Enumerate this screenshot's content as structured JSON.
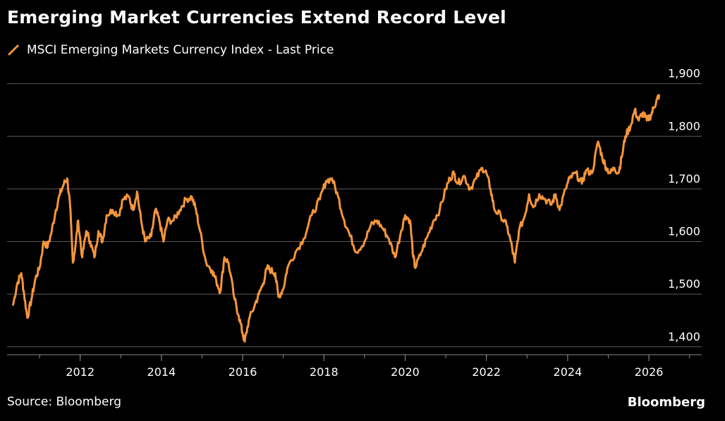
{
  "chart_data": {
    "type": "line",
    "title": "Emerging Market Currencies Extend Record Level",
    "source": "Source: Bloomberg",
    "brand": "Bloomberg",
    "xlabel": "",
    "ylabel": "",
    "xlim": [
      2010.2,
      2027.3
    ],
    "ylim": [
      1385,
      1925
    ],
    "y_ticks": [
      {
        "value": 1400,
        "label": "1,400"
      },
      {
        "value": 1500,
        "label": "1,500"
      },
      {
        "value": 1600,
        "label": "1,600"
      },
      {
        "value": 1700,
        "label": "1,700"
      },
      {
        "value": 1800,
        "label": "1,800"
      },
      {
        "value": 1900,
        "label": "1,900"
      }
    ],
    "x_ticks": [
      {
        "value": 2012,
        "label": "2012"
      },
      {
        "value": 2014,
        "label": "2014"
      },
      {
        "value": 2016,
        "label": "2016"
      },
      {
        "value": 2018,
        "label": "2018"
      },
      {
        "value": 2020,
        "label": "2020"
      },
      {
        "value": 2022,
        "label": "2022"
      },
      {
        "value": 2024,
        "label": "2024"
      },
      {
        "value": 2026,
        "label": "2026"
      }
    ],
    "grid": true,
    "legend_position": "top-left",
    "colors": {
      "line": "#f5953a",
      "grid": "#5a5a5a",
      "axis": "#8a8a8a",
      "background": "#000000"
    },
    "series": [
      {
        "name": "MSCI Emerging Markets Currency Index - Last Price",
        "points": [
          [
            2010.35,
            1480
          ],
          [
            2010.45,
            1520
          ],
          [
            2010.55,
            1540
          ],
          [
            2010.62,
            1500
          ],
          [
            2010.7,
            1455
          ],
          [
            2010.8,
            1490
          ],
          [
            2010.9,
            1530
          ],
          [
            2011.0,
            1550
          ],
          [
            2011.1,
            1600
          ],
          [
            2011.2,
            1590
          ],
          [
            2011.3,
            1620
          ],
          [
            2011.4,
            1660
          ],
          [
            2011.5,
            1690
          ],
          [
            2011.6,
            1710
          ],
          [
            2011.68,
            1720
          ],
          [
            2011.75,
            1670
          ],
          [
            2011.82,
            1560
          ],
          [
            2011.88,
            1590
          ],
          [
            2011.95,
            1640
          ],
          [
            2012.05,
            1570
          ],
          [
            2012.15,
            1620
          ],
          [
            2012.25,
            1600
          ],
          [
            2012.35,
            1570
          ],
          [
            2012.45,
            1620
          ],
          [
            2012.55,
            1600
          ],
          [
            2012.65,
            1650
          ],
          [
            2012.8,
            1660
          ],
          [
            2012.95,
            1650
          ],
          [
            2013.05,
            1680
          ],
          [
            2013.2,
            1685
          ],
          [
            2013.3,
            1660
          ],
          [
            2013.4,
            1695
          ],
          [
            2013.5,
            1640
          ],
          [
            2013.6,
            1600
          ],
          [
            2013.75,
            1610
          ],
          [
            2013.85,
            1660
          ],
          [
            2013.95,
            1640
          ],
          [
            2014.05,
            1600
          ],
          [
            2014.15,
            1640
          ],
          [
            2014.3,
            1640
          ],
          [
            2014.45,
            1660
          ],
          [
            2014.6,
            1680
          ],
          [
            2014.75,
            1685
          ],
          [
            2014.85,
            1660
          ],
          [
            2014.95,
            1620
          ],
          [
            2015.1,
            1560
          ],
          [
            2015.25,
            1545
          ],
          [
            2015.35,
            1525
          ],
          [
            2015.45,
            1505
          ],
          [
            2015.55,
            1570
          ],
          [
            2015.65,
            1560
          ],
          [
            2015.8,
            1490
          ],
          [
            2015.9,
            1460
          ],
          [
            2016.0,
            1425
          ],
          [
            2016.05,
            1410
          ],
          [
            2016.15,
            1450
          ],
          [
            2016.3,
            1480
          ],
          [
            2016.4,
            1500
          ],
          [
            2016.5,
            1520
          ],
          [
            2016.6,
            1550
          ],
          [
            2016.7,
            1545
          ],
          [
            2016.8,
            1540
          ],
          [
            2016.88,
            1495
          ],
          [
            2017.0,
            1510
          ],
          [
            2017.1,
            1550
          ],
          [
            2017.3,
            1580
          ],
          [
            2017.5,
            1605
          ],
          [
            2017.7,
            1650
          ],
          [
            2017.9,
            1680
          ],
          [
            2018.05,
            1715
          ],
          [
            2018.2,
            1720
          ],
          [
            2018.35,
            1685
          ],
          [
            2018.5,
            1640
          ],
          [
            2018.65,
            1610
          ],
          [
            2018.8,
            1580
          ],
          [
            2019.0,
            1600
          ],
          [
            2019.15,
            1630
          ],
          [
            2019.3,
            1640
          ],
          [
            2019.45,
            1625
          ],
          [
            2019.6,
            1605
          ],
          [
            2019.75,
            1570
          ],
          [
            2019.9,
            1620
          ],
          [
            2020.0,
            1650
          ],
          [
            2020.12,
            1640
          ],
          [
            2020.2,
            1570
          ],
          [
            2020.25,
            1550
          ],
          [
            2020.4,
            1580
          ],
          [
            2020.55,
            1610
          ],
          [
            2020.7,
            1640
          ],
          [
            2020.85,
            1660
          ],
          [
            2021.0,
            1700
          ],
          [
            2021.1,
            1720
          ],
          [
            2021.2,
            1730
          ],
          [
            2021.3,
            1710
          ],
          [
            2021.45,
            1725
          ],
          [
            2021.6,
            1700
          ],
          [
            2021.75,
            1720
          ],
          [
            2021.9,
            1740
          ],
          [
            2022.0,
            1730
          ],
          [
            2022.1,
            1700
          ],
          [
            2022.2,
            1660
          ],
          [
            2022.35,
            1650
          ],
          [
            2022.5,
            1630
          ],
          [
            2022.6,
            1600
          ],
          [
            2022.7,
            1560
          ],
          [
            2022.8,
            1620
          ],
          [
            2022.95,
            1650
          ],
          [
            2023.05,
            1690
          ],
          [
            2023.15,
            1665
          ],
          [
            2023.3,
            1690
          ],
          [
            2023.45,
            1680
          ],
          [
            2023.6,
            1670
          ],
          [
            2023.7,
            1690
          ],
          [
            2023.8,
            1660
          ],
          [
            2023.95,
            1700
          ],
          [
            2024.05,
            1720
          ],
          [
            2024.2,
            1730
          ],
          [
            2024.35,
            1710
          ],
          [
            2024.45,
            1735
          ],
          [
            2024.6,
            1730
          ],
          [
            2024.75,
            1790
          ],
          [
            2024.85,
            1760
          ],
          [
            2024.95,
            1740
          ],
          [
            2025.05,
            1730
          ],
          [
            2025.15,
            1740
          ],
          [
            2025.25,
            1730
          ],
          [
            2025.33,
            1760
          ],
          [
            2025.42,
            1800
          ],
          [
            2025.55,
            1820
          ],
          [
            2025.65,
            1850
          ],
          [
            2025.75,
            1830
          ],
          [
            2025.85,
            1845
          ],
          [
            2025.95,
            1830
          ],
          [
            2026.05,
            1840
          ],
          [
            2026.12,
            1855
          ],
          [
            2026.2,
            1870
          ],
          [
            2026.25,
            1878
          ]
        ]
      }
    ]
  }
}
